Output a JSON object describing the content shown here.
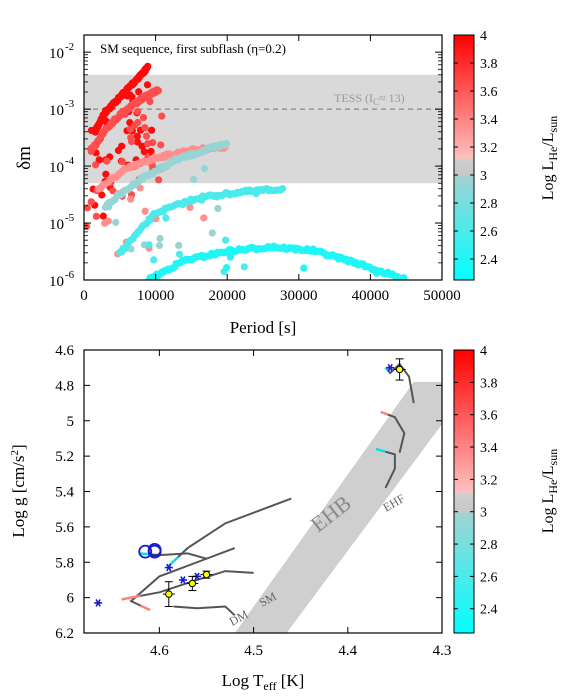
{
  "chart_data": [
    {
      "type": "scatter",
      "annotation": "SM sequence, first subflash (η=0.2)",
      "xlabel": "Period [s]",
      "ylabel": "δm",
      "xlim": [
        0,
        50000
      ],
      "ylim": [
        1e-06,
        0.02
      ],
      "y_scale": "log",
      "x_ticks": [
        "0",
        "10000",
        "20000",
        "30000",
        "40000",
        "50000"
      ],
      "x_tick_values": [
        0,
        10000,
        20000,
        30000,
        40000,
        50000
      ],
      "y_tick_values": [
        1e-06,
        1e-05,
        0.0001,
        0.001,
        0.01
      ],
      "y_ticks": [
        {
          "base": "10",
          "exp": "-6"
        },
        {
          "base": "10",
          "exp": "-5"
        },
        {
          "base": "10",
          "exp": "-4"
        },
        {
          "base": "10",
          "exp": "-3"
        },
        {
          "base": "10",
          "exp": "-2"
        }
      ],
      "shaded_band": {
        "y_range": [
          5e-05,
          0.004
        ],
        "color": "#d9d9d9"
      },
      "tess_line": {
        "y": 0.001,
        "label_main": "TESS (I",
        "label_sub": "C",
        "label_end": "≈ 13)",
        "style": "dashed"
      },
      "tracks": [
        {
          "log_he": 3.95,
          "points": [
            [
              1500,
              0.0004
            ],
            [
              3000,
              0.0009
            ],
            [
              5000,
              0.0016
            ],
            [
              7000,
              0.003
            ],
            [
              9000,
              0.0055
            ]
          ]
        },
        {
          "log_he": 3.65,
          "points": [
            [
              1000,
              0.00018
            ],
            [
              3000,
              0.00045
            ],
            [
              5500,
              0.0009
            ],
            [
              8000,
              0.0015
            ],
            [
              10500,
              0.0022
            ]
          ]
        },
        {
          "log_he": 3.35,
          "points": [
            [
              2000,
              4e-05
            ],
            [
              6000,
              9e-05
            ],
            [
              10000,
              0.00014
            ],
            [
              15000,
              0.00019
            ],
            [
              20000,
              0.00022
            ]
          ]
        },
        {
          "log_he": 2.95,
          "points": [
            [
              3000,
              2e-05
            ],
            [
              8000,
              6e-05
            ],
            [
              13000,
              0.00013
            ],
            [
              18000,
              0.00021
            ],
            [
              20000,
              0.00025
            ]
          ]
        },
        {
          "log_he": 2.6,
          "points": [
            [
              5000,
              3e-06
            ],
            [
              10000,
              1.5e-05
            ],
            [
              16000,
              2.8e-05
            ],
            [
              22000,
              3.5e-05
            ],
            [
              28000,
              4e-05
            ]
          ]
        },
        {
          "log_he": 2.4,
          "points": [
            [
              9000,
              1e-06
            ],
            [
              14000,
              2.2e-06
            ],
            [
              20000,
              3.2e-06
            ],
            [
              26000,
              3.8e-06
            ],
            [
              32000,
              3.3e-06
            ],
            [
              38000,
              2e-06
            ],
            [
              45000,
              1e-06
            ]
          ]
        }
      ],
      "colorbar": {
        "label_main": "Log L",
        "sub1": "He",
        "mid": "/L",
        "sub2": "sun",
        "range": [
          2.25,
          4.0
        ],
        "ticks": [
          "2.4",
          "2.6",
          "2.8",
          "3",
          "3.2",
          "3.4",
          "3.6",
          "3.8",
          "4"
        ],
        "tick_values": [
          2.4,
          2.6,
          2.8,
          3.0,
          3.2,
          3.4,
          3.6,
          3.8,
          4.0
        ]
      }
    },
    {
      "type": "line",
      "xlabel_main": "Log T",
      "xlabel_sub": "eff",
      "xlabel_end": " [K]",
      "ylabel": "Log g [cm/s",
      "ylabel_sup": "2",
      "ylabel_end": "]",
      "xlim": [
        4.68,
        4.3
      ],
      "ylim": [
        6.2,
        4.6
      ],
      "x_ticks": [
        "4.6",
        "4.5",
        "4.4",
        "4.3"
      ],
      "x_tick_values": [
        4.6,
        4.5,
        4.4,
        4.3
      ],
      "y_ticks": [
        "4.6",
        "4.8",
        "5",
        "5.2",
        "5.4",
        "5.6",
        "5.8",
        "6",
        "6.2"
      ],
      "y_tick_values": [
        4.6,
        4.8,
        5.0,
        5.2,
        5.4,
        5.6,
        5.8,
        6.0,
        6.2
      ],
      "band_label": "EHB",
      "ehf_label": "EHF",
      "dm_label": "DM",
      "sm_label": "SM",
      "ehb_band": [
        [
          4.52,
          6.2
        ],
        [
          4.33,
          4.78
        ],
        [
          4.3,
          4.78
        ],
        [
          4.3,
          5.02
        ],
        [
          4.465,
          6.2
        ]
      ],
      "tracks": [
        [
          [
            4.61,
            6.07
          ],
          [
            4.63,
            6.02
          ],
          [
            4.6,
            5.88
          ],
          [
            4.56,
            5.8
          ],
          [
            4.52,
            5.72
          ]
        ],
        [
          [
            4.59,
            5.82
          ],
          [
            4.57,
            5.72
          ],
          [
            4.53,
            5.58
          ],
          [
            4.49,
            5.5
          ],
          [
            4.46,
            5.44
          ]
        ],
        [
          [
            4.64,
            6.01
          ],
          [
            4.6,
            5.97
          ],
          [
            4.56,
            5.9
          ],
          [
            4.53,
            5.85
          ],
          [
            4.5,
            5.86
          ]
        ],
        [
          [
            4.62,
            5.75
          ],
          [
            4.6,
            5.76
          ],
          [
            4.57,
            5.75
          ],
          [
            4.55,
            5.78
          ]
        ],
        [
          [
            4.585,
            6.05
          ],
          [
            4.56,
            6.06
          ],
          [
            4.53,
            6.05
          ],
          [
            4.52,
            6.1
          ]
        ],
        [
          [
            4.36,
            4.7
          ],
          [
            4.355,
            4.73
          ],
          [
            4.345,
            4.68
          ],
          [
            4.335,
            4.75
          ],
          [
            4.33,
            4.9
          ]
        ],
        [
          [
            4.365,
            4.95
          ],
          [
            4.35,
            4.98
          ],
          [
            4.34,
            5.07
          ],
          [
            4.345,
            5.18
          ]
        ],
        [
          [
            4.37,
            5.16
          ],
          [
            4.35,
            5.19
          ],
          [
            4.35,
            5.27
          ],
          [
            4.36,
            5.38
          ]
        ]
      ],
      "stars": [
        [
          4.665,
          6.03
        ],
        [
          4.59,
          5.83
        ],
        [
          4.575,
          5.9
        ],
        [
          4.56,
          5.88
        ],
        [
          4.355,
          4.7
        ]
      ],
      "circles": [
        [
          4.615,
          5.74
        ],
        [
          4.605,
          5.74
        ],
        [
          4.605,
          5.73
        ]
      ],
      "yellow_points": [
        {
          "x": 4.59,
          "y": 5.98,
          "err": 0.07
        },
        {
          "x": 4.565,
          "y": 5.92,
          "err": 0.04
        },
        {
          "x": 4.55,
          "y": 5.87,
          "err": 0.02
        },
        {
          "x": 4.345,
          "y": 4.71,
          "err": 0.06
        }
      ],
      "colorbar": {
        "label_main": "Log L",
        "sub1": "He",
        "mid": "/L",
        "sub2": "sun",
        "range": [
          2.25,
          4.0
        ],
        "ticks": [
          "2.4",
          "2.6",
          "2.8",
          "3",
          "3.2",
          "3.4",
          "3.6",
          "3.8",
          "4"
        ],
        "tick_values": [
          2.4,
          2.6,
          2.8,
          3.0,
          3.2,
          3.4,
          3.6,
          3.8,
          4.0
        ]
      }
    }
  ]
}
